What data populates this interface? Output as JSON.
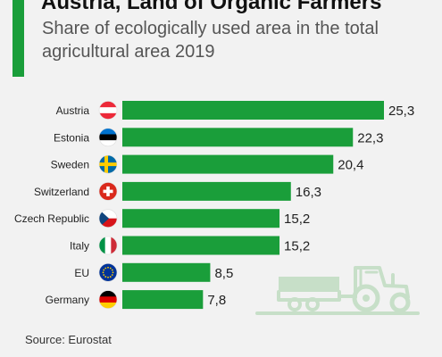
{
  "header": {
    "title": "Austria, Land of Organic Farmers",
    "subtitle": "Share of ecologically used area in the total agricultural area 2019"
  },
  "footer": {
    "source": "Source: Eurostat"
  },
  "colors": {
    "bar": "#1a9e3a",
    "accent": "#1a9e3a",
    "illustration": "#c7dfc8"
  },
  "illustration": {
    "icon": "tractor-with-trailer-icon"
  },
  "chart_data": {
    "type": "bar",
    "orientation": "horizontal",
    "categories": [
      "Austria",
      "Estonia",
      "Sweden",
      "Switzerland",
      "Czech Republic",
      "Italy",
      "EU",
      "Germany"
    ],
    "values": [
      25.3,
      22.3,
      20.4,
      16.3,
      15.2,
      15.2,
      8.5,
      7.8
    ],
    "value_labels": [
      "25,3",
      "22,3",
      "20,4",
      "16,3",
      "15,2",
      "15,2",
      "8,5",
      "7,8"
    ],
    "flags": [
      "austria-flag-icon",
      "estonia-flag-icon",
      "sweden-flag-icon",
      "switzerland-flag-icon",
      "czech-republic-flag-icon",
      "italy-flag-icon",
      "eu-flag-icon",
      "germany-flag-icon"
    ],
    "xlim": [
      0,
      25.3
    ],
    "grid": false,
    "legend": "none"
  }
}
